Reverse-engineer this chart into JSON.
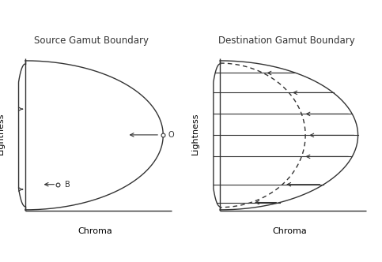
{
  "title_left": "Source Gamut Boundary",
  "title_right": "Destination Gamut Boundary",
  "xlabel": "Chroma",
  "ylabel": "Lightness",
  "bg_color": "#ffffff",
  "line_color": "#333333",
  "font_size": 8,
  "title_font_size": 8.5
}
